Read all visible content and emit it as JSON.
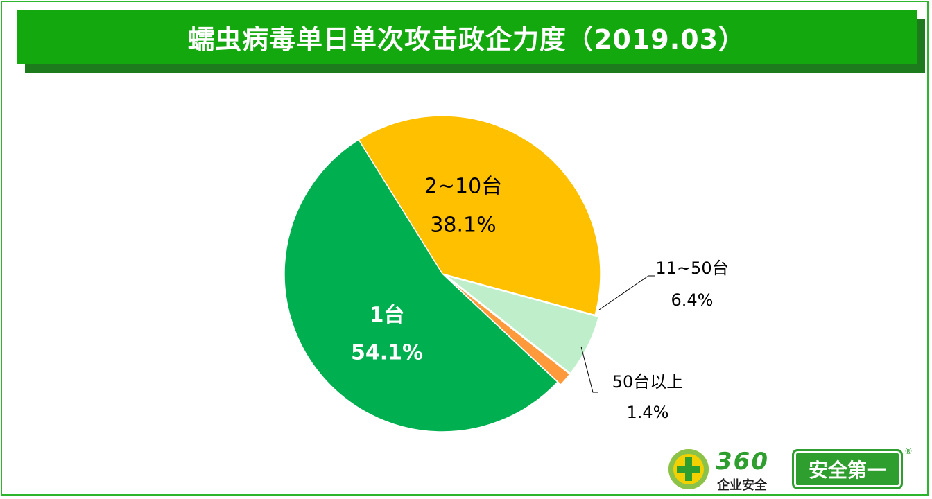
{
  "title": "蠕虫病毒单日单次攻击政企力度（2019.03）",
  "chart_data": {
    "type": "pie",
    "title": "蠕虫病毒单日单次攻击政企力度（2019.03）",
    "slices": [
      {
        "label": "2~10台",
        "value": 38.1,
        "value_label": "38.1%",
        "color": "#ffc000",
        "label_color": "#000000",
        "label_placement": "inside"
      },
      {
        "label": "11~50台",
        "value": 6.4,
        "value_label": "6.4%",
        "color": "#bfeecb",
        "label_color": "#000000",
        "label_placement": "outside"
      },
      {
        "label": "50台以上",
        "value": 1.4,
        "value_label": "1.4%",
        "color": "#ff9a3c",
        "label_color": "#000000",
        "label_placement": "outside"
      },
      {
        "label": "1台",
        "value": 54.1,
        "value_label": "54.1%",
        "color": "#00b050",
        "label_color": "#ffffff",
        "label_placement": "inside"
      }
    ]
  },
  "logo": {
    "number": "360",
    "subtitle": "企业安全",
    "slogan": "安全第一",
    "registered": "®"
  },
  "colors": {
    "title_bg": "#14a80f",
    "title_shadow": "#1d7a1d",
    "border": "#2db52d"
  }
}
